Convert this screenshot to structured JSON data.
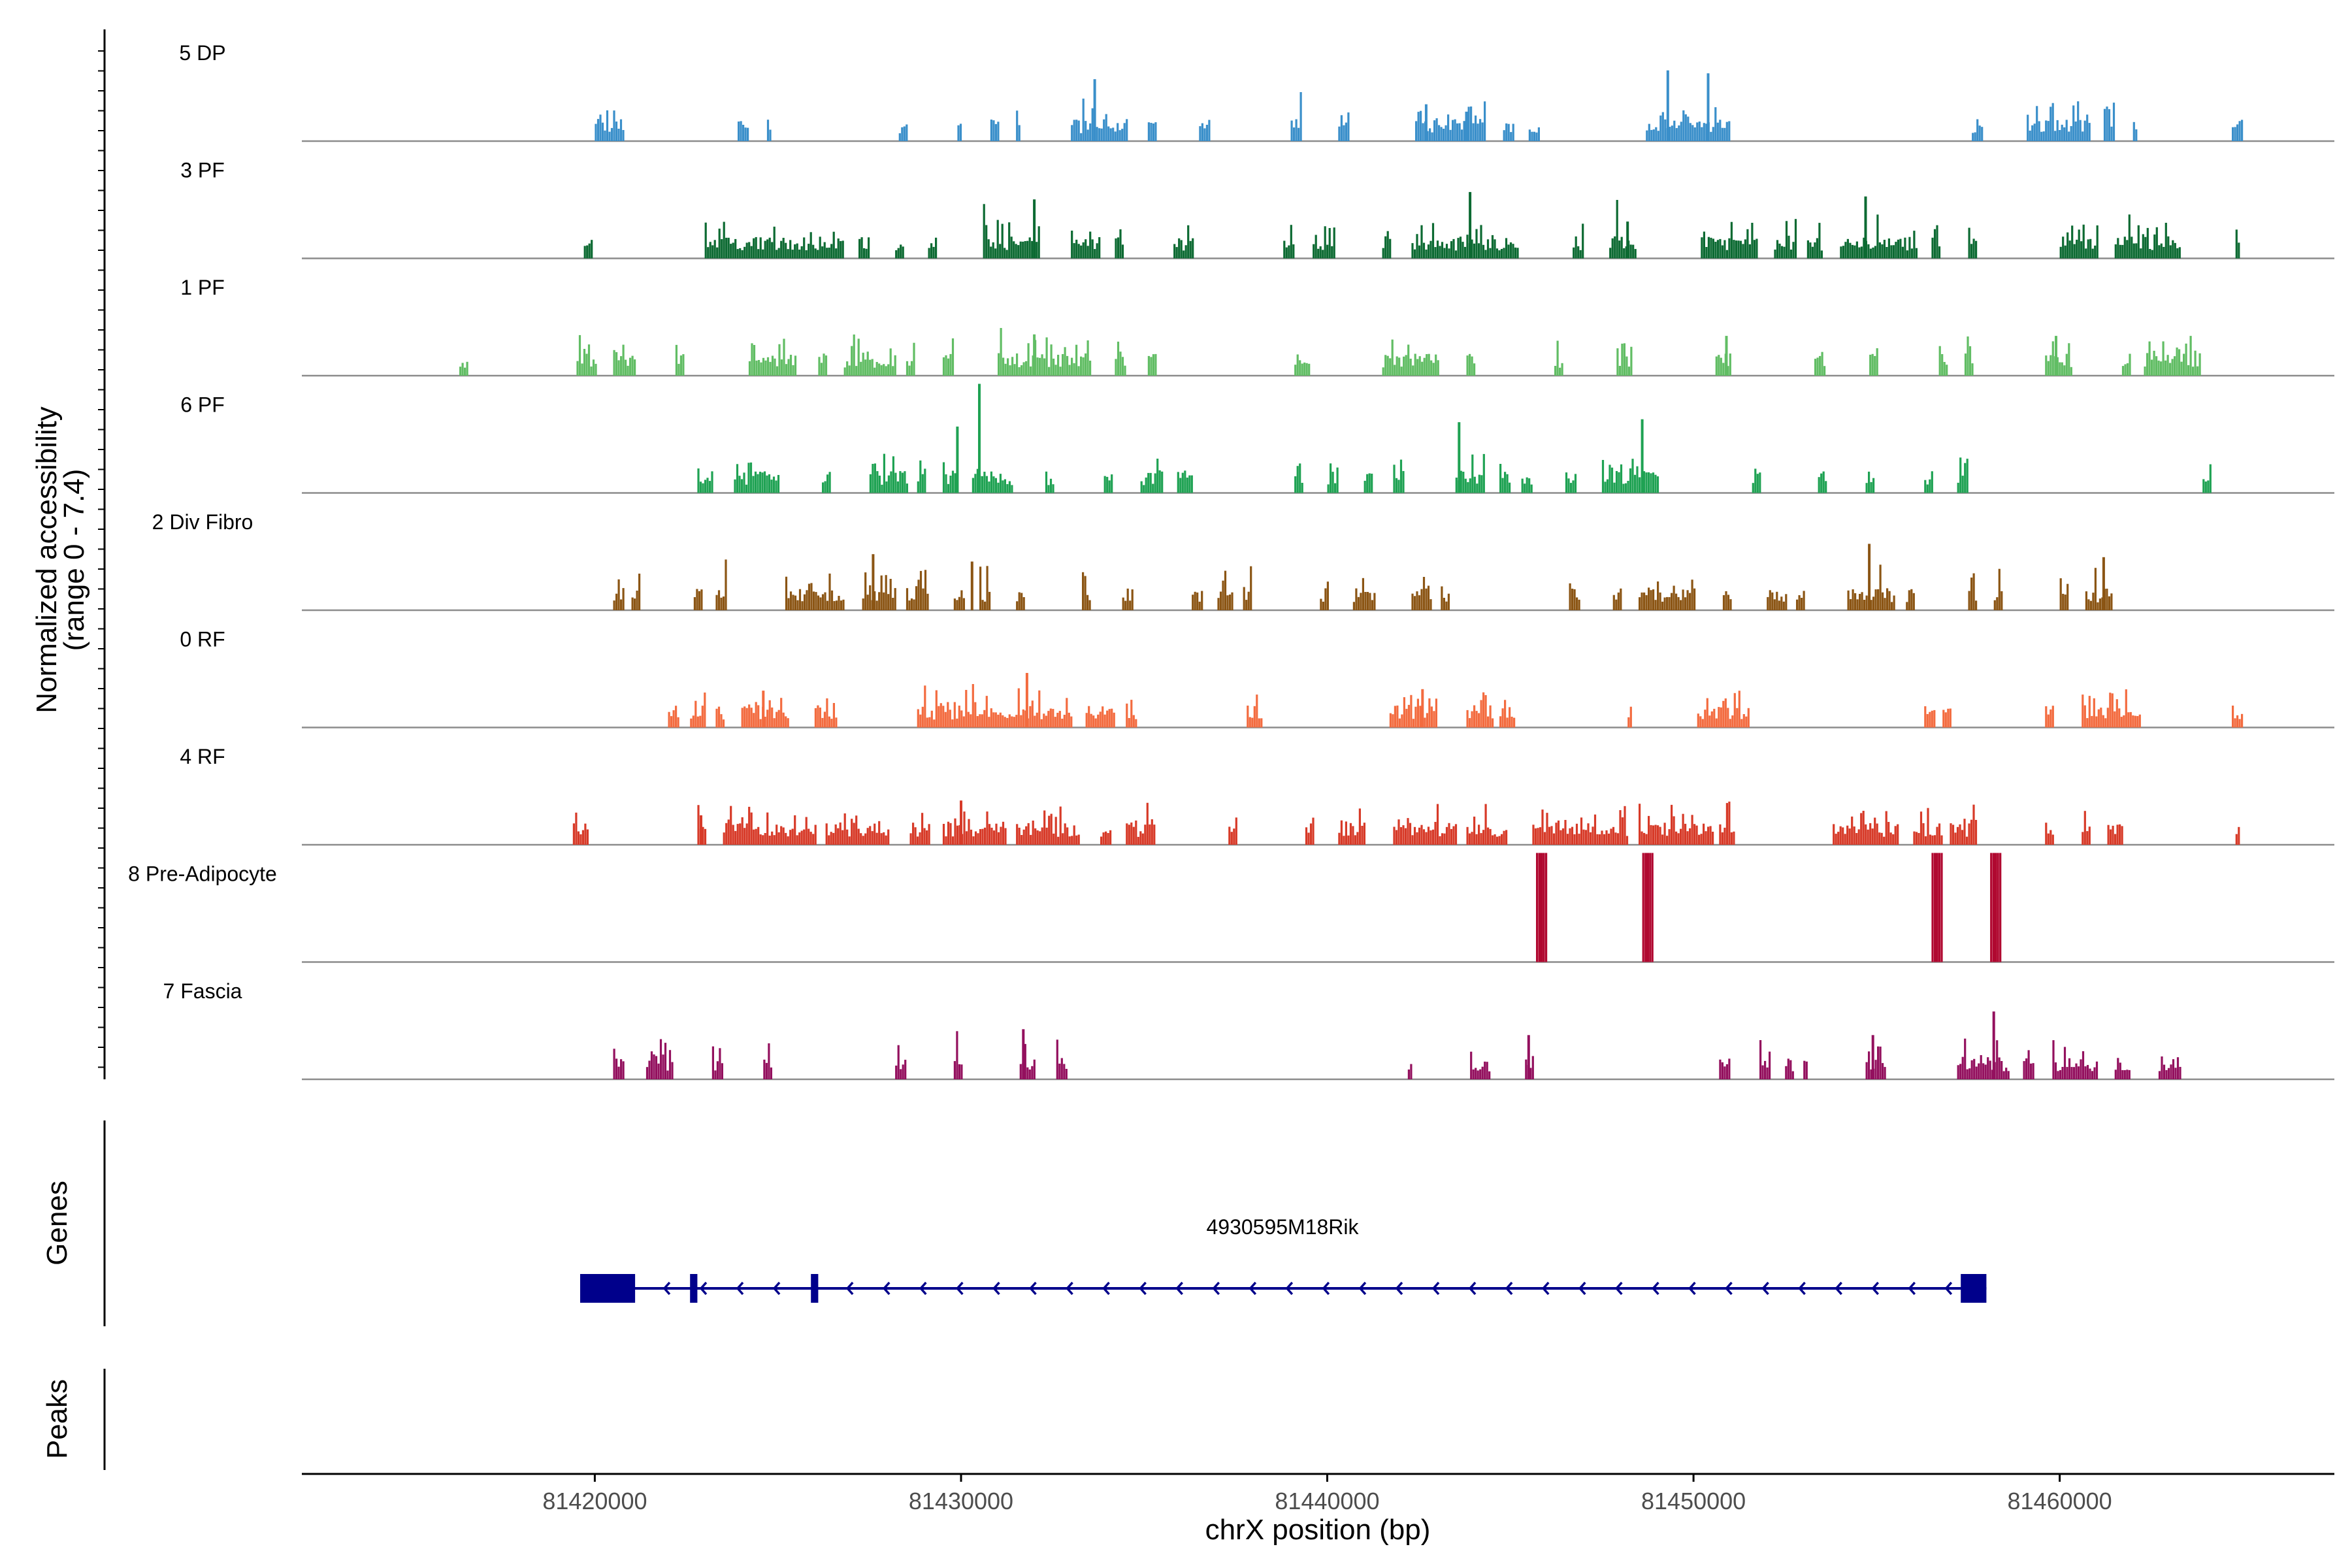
{
  "chart_data": {
    "type": "area",
    "chart_kind": "genome coverage browser track",
    "y_axis_label": "Normalized accessibility",
    "y_axis_range_label": "(range 0 - 7.4)",
    "ylim": [
      0,
      7.4
    ],
    "xlabel": "chrX position (bp)",
    "xlim": [
      81412000,
      81467500
    ],
    "x_ticks": [
      {
        "value": 81420000,
        "label": "81420000"
      },
      {
        "value": 81430000,
        "label": "81430000"
      },
      {
        "value": 81440000,
        "label": "81440000"
      },
      {
        "value": 81450000,
        "label": "81450000"
      },
      {
        "value": 81460000,
        "label": "81460000"
      }
    ],
    "series": [
      {
        "name": "5 DP",
        "color": "#3a8fca",
        "regions": [
          [
            81420000,
            81420800
          ],
          [
            81423900,
            81424200
          ],
          [
            81424700,
            81424800
          ],
          [
            81428300,
            81428500
          ],
          [
            81429900,
            81430000
          ],
          [
            81430800,
            81431000
          ],
          [
            81431500,
            81431600
          ],
          [
            81433000,
            81434500
          ],
          [
            81435100,
            81435300
          ],
          [
            81436500,
            81436800
          ],
          [
            81439000,
            81439300
          ],
          [
            81440300,
            81440600
          ],
          [
            81442400,
            81444300
          ],
          [
            81444800,
            81445100
          ],
          [
            81445500,
            81445800
          ],
          [
            81448700,
            81451000
          ],
          [
            81457600,
            81457900
          ],
          [
            81459100,
            81460800
          ],
          [
            81461200,
            81461500
          ],
          [
            81462000,
            81462100
          ],
          [
            81464700,
            81465000
          ]
        ],
        "peaks": [
          [
            81433650,
            4.2
          ],
          [
            81442700,
            2.5
          ],
          [
            81443800,
            2.0
          ],
          [
            81449300,
            4.8
          ],
          [
            81450400,
            4.6
          ]
        ]
      },
      {
        "name": "3 PF",
        "color": "#0c6a32",
        "regions": [
          [
            81419700,
            81419900
          ],
          [
            81423000,
            81426800
          ],
          [
            81427200,
            81427500
          ],
          [
            81428200,
            81428400
          ],
          [
            81429100,
            81429300
          ],
          [
            81430600,
            81432100
          ],
          [
            81433000,
            81433800
          ],
          [
            81434200,
            81434400
          ],
          [
            81435800,
            81436300
          ],
          [
            81438800,
            81439100
          ],
          [
            81439600,
            81440200
          ],
          [
            81441500,
            81441700
          ],
          [
            81442300,
            81445200
          ],
          [
            81446700,
            81447000
          ],
          [
            81447700,
            81448400
          ],
          [
            81450200,
            81451700
          ],
          [
            81452200,
            81452800
          ],
          [
            81453100,
            81453500
          ],
          [
            81454000,
            81456100
          ],
          [
            81456500,
            81456700
          ],
          [
            81457500,
            81457700
          ],
          [
            81460000,
            81461000
          ],
          [
            81461500,
            81463300
          ],
          [
            81464800,
            81464900
          ]
        ],
        "peaks": [
          [
            81432000,
            4.0
          ],
          [
            81443900,
            4.5
          ],
          [
            81454700,
            4.2
          ],
          [
            81448200,
            2.5
          ]
        ]
      },
      {
        "name": "1 PF",
        "color": "#61bd64",
        "regions": [
          [
            81416300,
            81416500
          ],
          [
            81419500,
            81420000
          ],
          [
            81420500,
            81421100
          ],
          [
            81422200,
            81422400
          ],
          [
            81424200,
            81425500
          ],
          [
            81426100,
            81426300
          ],
          [
            81426800,
            81428200
          ],
          [
            81428500,
            81428700
          ],
          [
            81429500,
            81429800
          ],
          [
            81431000,
            81433500
          ],
          [
            81434200,
            81434500
          ],
          [
            81435100,
            81435300
          ],
          [
            81439100,
            81439500
          ],
          [
            81441500,
            81443000
          ],
          [
            81443800,
            81444000
          ],
          [
            81446200,
            81446400
          ],
          [
            81447900,
            81448300
          ],
          [
            81450600,
            81451000
          ],
          [
            81453300,
            81453600
          ],
          [
            81454800,
            81455000
          ],
          [
            81456700,
            81456900
          ],
          [
            81457400,
            81457600
          ],
          [
            81459600,
            81460300
          ],
          [
            81461700,
            81461900
          ],
          [
            81462300,
            81463800
          ]
        ],
        "peaks": [
          [
            81432000,
            2.8
          ],
          [
            81450900,
            2.7
          ],
          [
            81459900,
            2.7
          ]
        ]
      },
      {
        "name": "6 PF",
        "color": "#1fa253",
        "regions": [
          [
            81422800,
            81423200
          ],
          [
            81423800,
            81425000
          ],
          [
            81426200,
            81426400
          ],
          [
            81427500,
            81428500
          ],
          [
            81428800,
            81429000
          ],
          [
            81429500,
            81429900
          ],
          [
            81430300,
            81431400
          ],
          [
            81432300,
            81432500
          ],
          [
            81433900,
            81434100
          ],
          [
            81434900,
            81435500
          ],
          [
            81435900,
            81436300
          ],
          [
            81439100,
            81439300
          ],
          [
            81440000,
            81440300
          ],
          [
            81441000,
            81441200
          ],
          [
            81441800,
            81442100
          ],
          [
            81443500,
            81444300
          ],
          [
            81444700,
            81445000
          ],
          [
            81445300,
            81445600
          ],
          [
            81446500,
            81446800
          ],
          [
            81447500,
            81449000
          ],
          [
            81451600,
            81451800
          ],
          [
            81453400,
            81453600
          ],
          [
            81454700,
            81454900
          ],
          [
            81456300,
            81456500
          ],
          [
            81457200,
            81457500
          ],
          [
            81463900,
            81464100
          ]
        ],
        "peaks": [
          [
            81430500,
            7.4
          ],
          [
            81443600,
            4.8
          ],
          [
            81448600,
            5.0
          ],
          [
            81429900,
            4.5
          ]
        ]
      },
      {
        "name": "2 Div Fibro",
        "color": "#8b5514",
        "regions": [
          [
            81420500,
            81420800
          ],
          [
            81421000,
            81421200
          ],
          [
            81422700,
            81422900
          ],
          [
            81423300,
            81423600
          ],
          [
            81425200,
            81426800
          ],
          [
            81427300,
            81428200
          ],
          [
            81428500,
            81429100
          ],
          [
            81429800,
            81430100
          ],
          [
            81430500,
            81430800
          ],
          [
            81431500,
            81431700
          ],
          [
            81433300,
            81433500
          ],
          [
            81434400,
            81434700
          ],
          [
            81436300,
            81436600
          ],
          [
            81437000,
            81437400
          ],
          [
            81437700,
            81437900
          ],
          [
            81439800,
            81440000
          ],
          [
            81440700,
            81441300
          ],
          [
            81442300,
            81442800
          ],
          [
            81443100,
            81443300
          ],
          [
            81446600,
            81446900
          ],
          [
            81447800,
            81448000
          ],
          [
            81448500,
            81450000
          ],
          [
            81450800,
            81451000
          ],
          [
            81452000,
            81452500
          ],
          [
            81452800,
            81453000
          ],
          [
            81454200,
            81455500
          ],
          [
            81455800,
            81456000
          ],
          [
            81457500,
            81457700
          ],
          [
            81458200,
            81458400
          ],
          [
            81460000,
            81460200
          ],
          [
            81460700,
            81461400
          ]
        ],
        "peaks": [
          [
            81427600,
            3.8
          ],
          [
            81454800,
            4.5
          ],
          [
            81430300,
            3.3
          ],
          [
            81461200,
            3.6
          ]
        ]
      },
      {
        "name": "0 RF",
        "color": "#f36b3f",
        "regions": [
          [
            81422000,
            81422300
          ],
          [
            81422600,
            81423000
          ],
          [
            81423300,
            81423500
          ],
          [
            81424000,
            81425300
          ],
          [
            81426000,
            81426600
          ],
          [
            81428800,
            81433000
          ],
          [
            81433400,
            81434200
          ],
          [
            81434500,
            81434800
          ],
          [
            81437800,
            81438200
          ],
          [
            81441700,
            81443000
          ],
          [
            81443800,
            81444500
          ],
          [
            81444700,
            81445100
          ],
          [
            81448200,
            81448300
          ],
          [
            81450100,
            81451500
          ],
          [
            81456300,
            81456600
          ],
          [
            81456800,
            81457000
          ],
          [
            81459600,
            81459800
          ],
          [
            81460600,
            81462200
          ],
          [
            81464700,
            81465000
          ]
        ],
        "peaks": [
          [
            81431800,
            3.7
          ],
          [
            81424600,
            2.5
          ],
          [
            81442600,
            2.6
          ]
        ]
      },
      {
        "name": "4 RF",
        "color": "#d73a28",
        "regions": [
          [
            81419400,
            81419800
          ],
          [
            81422800,
            81423000
          ],
          [
            81423500,
            81426000
          ],
          [
            81426300,
            81428000
          ],
          [
            81428600,
            81429100
          ],
          [
            81429500,
            81431200
          ],
          [
            81431500,
            81433200
          ],
          [
            81433800,
            81434100
          ],
          [
            81434500,
            81435300
          ],
          [
            81437300,
            81437500
          ],
          [
            81439400,
            81439600
          ],
          [
            81440300,
            81441000
          ],
          [
            81441800,
            81443500
          ],
          [
            81443800,
            81444900
          ],
          [
            81445600,
            81448200
          ],
          [
            81448500,
            81450500
          ],
          [
            81450700,
            81451100
          ],
          [
            81453800,
            81455600
          ],
          [
            81456000,
            81456800
          ],
          [
            81457000,
            81457700
          ],
          [
            81459600,
            81459800
          ],
          [
            81460600,
            81460800
          ],
          [
            81461300,
            81461700
          ],
          [
            81464800,
            81464900
          ]
        ],
        "peaks": [
          [
            81430000,
            3.0
          ],
          [
            81422900,
            2.0
          ]
        ]
      },
      {
        "name": "8 Pre-Adipocyte",
        "color": "#b00830",
        "regions": [
          [
            81445700,
            81446000
          ],
          [
            81448600,
            81448900
          ],
          [
            81456500,
            81456800
          ],
          [
            81458100,
            81458400
          ]
        ],
        "peaks": [
          [
            81445850,
            7.4
          ],
          [
            81448750,
            7.4
          ],
          [
            81456650,
            7.4
          ],
          [
            81458250,
            7.4
          ]
        ]
      },
      {
        "name": "7 Fascia",
        "color": "#93105e",
        "regions": [
          [
            81420500,
            81420800
          ],
          [
            81421400,
            81422100
          ],
          [
            81423200,
            81423500
          ],
          [
            81424600,
            81424800
          ],
          [
            81428200,
            81428500
          ],
          [
            81429800,
            81430000
          ],
          [
            81431600,
            81432000
          ],
          [
            81432600,
            81432900
          ],
          [
            81442200,
            81442300
          ],
          [
            81443900,
            81444400
          ],
          [
            81445400,
            81445600
          ],
          [
            81450700,
            81451000
          ],
          [
            81451800,
            81452100
          ],
          [
            81452500,
            81452700
          ],
          [
            81453000,
            81453100
          ],
          [
            81454700,
            81455200
          ],
          [
            81457200,
            81458600
          ],
          [
            81459000,
            81459300
          ],
          [
            81459800,
            81461000
          ],
          [
            81461500,
            81461900
          ],
          [
            81462700,
            81463300
          ]
        ],
        "peaks": [
          [
            81458200,
            4.6
          ],
          [
            81431700,
            3.4
          ],
          [
            81445500,
            3.0
          ],
          [
            81454900,
            3.0
          ]
        ]
      }
    ],
    "genes_label": "Genes",
    "peaks_label": "Peaks",
    "gene": {
      "name": "4930595M18Rik",
      "strand": "-",
      "color": "#00008b",
      "start": 81419600,
      "end": 81458000,
      "exons": [
        [
          81419600,
          81421100
        ],
        [
          81422600,
          81422800
        ],
        [
          81425900,
          81426100
        ],
        [
          81457300,
          81458000
        ]
      ]
    }
  }
}
